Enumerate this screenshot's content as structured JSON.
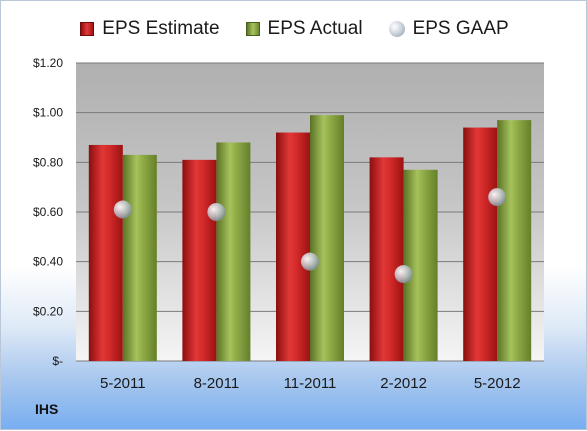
{
  "brand": "IHS",
  "colors": {
    "estimate": "#d42a2a",
    "actual": "#8eaa45",
    "gaap": "#b8c0c9",
    "plot_bg_top": "#b2b2b2",
    "plot_bg_bottom": "#f4f4f4",
    "gridline": "#7a7a7a"
  },
  "chart_data": {
    "type": "bar",
    "title": "",
    "xlabel": "",
    "ylabel": "",
    "categories": [
      "5-2011",
      "8-2011",
      "11-2011",
      "2-2012",
      "5-2012"
    ],
    "ylim": [
      0,
      1.2
    ],
    "yticks": [
      0,
      0.2,
      0.4,
      0.6,
      0.8,
      1.0,
      1.2
    ],
    "ytick_labels": [
      "$-",
      "$0.20",
      "$0.40",
      "$0.60",
      "$0.80",
      "$1.00",
      "$1.20"
    ],
    "grid": true,
    "legend_position": "top",
    "series": [
      {
        "name": "EPS Estimate",
        "kind": "bar",
        "values": [
          0.87,
          0.81,
          0.92,
          0.82,
          0.94
        ]
      },
      {
        "name": "EPS Actual",
        "kind": "bar",
        "values": [
          0.83,
          0.88,
          0.99,
          0.77,
          0.97
        ]
      },
      {
        "name": "EPS GAAP",
        "kind": "marker",
        "values": [
          0.61,
          0.6,
          0.4,
          0.35,
          0.66
        ]
      }
    ]
  }
}
